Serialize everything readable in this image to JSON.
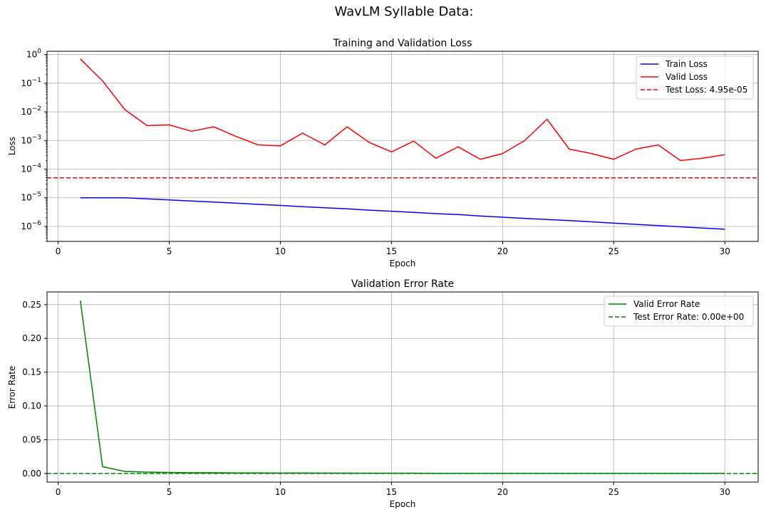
{
  "figure": {
    "suptitle": "WavLM Syllable Data:"
  },
  "chart_data": [
    {
      "type": "line",
      "title": "Training and Validation Loss",
      "xlabel": "Epoch",
      "ylabel": "Loss",
      "yscale": "log",
      "xlim": [
        -0.5,
        31.5
      ],
      "ylim": [
        3e-07,
        1.3
      ],
      "xticks": [
        0,
        5,
        10,
        15,
        20,
        25,
        30
      ],
      "xtick_labels": [
        "0",
        "5",
        "10",
        "15",
        "20",
        "25",
        "30"
      ],
      "yticks": [
        1e-06,
        1e-05,
        0.0001,
        0.001,
        0.01,
        0.1,
        1
      ],
      "ytick_labels": [
        {
          "base": "10",
          "exp": "−6"
        },
        {
          "base": "10",
          "exp": "−5"
        },
        {
          "base": "10",
          "exp": "−4"
        },
        {
          "base": "10",
          "exp": "−3"
        },
        {
          "base": "10",
          "exp": "−2"
        },
        {
          "base": "10",
          "exp": "−1"
        },
        {
          "base": "10",
          "exp": "0"
        }
      ],
      "grid": true,
      "legend_position": "top-right",
      "x": [
        1,
        2,
        3,
        4,
        5,
        6,
        7,
        8,
        9,
        10,
        11,
        12,
        13,
        14,
        15,
        16,
        17,
        18,
        19,
        20,
        21,
        22,
        23,
        24,
        25,
        26,
        27,
        28,
        29,
        30
      ],
      "series": [
        {
          "name": "Train Loss",
          "color": "#0000ff",
          "style": "solid",
          "values": [
            1e-05,
            1e-05,
            1e-05,
            9.2e-06,
            8.4e-06,
            7.7e-06,
            7.1e-06,
            6.5e-06,
            5.9e-06,
            5.4e-06,
            4.9e-06,
            4.5e-06,
            4.1e-06,
            3.7e-06,
            3.4e-06,
            3.1e-06,
            2.8e-06,
            2.6e-06,
            2.3e-06,
            2.1e-06,
            1.9e-06,
            1.75e-06,
            1.6e-06,
            1.45e-06,
            1.3e-06,
            1.18e-06,
            1.07e-06,
            9.7e-07,
            8.8e-07,
            8e-07
          ]
        },
        {
          "name": "Valid Loss",
          "color": "#ff0000",
          "style": "solid",
          "values": [
            0.7,
            0.12,
            0.012,
            0.0033,
            0.0035,
            0.0021,
            0.003,
            0.0014,
            0.0007,
            0.00065,
            0.0018,
            0.0007,
            0.003,
            0.00085,
            0.0004,
            0.00095,
            0.00024,
            0.0006,
            0.00022,
            0.00035,
            0.001,
            0.0055,
            0.0005,
            0.00035,
            0.00022,
            0.0005,
            0.0007,
            0.0002,
            0.00024,
            0.00032
          ]
        }
      ],
      "hlines": [
        {
          "name": "Test Loss: 4.95e-05",
          "value": 4.95e-05,
          "color": "#ff0000",
          "style": "dashed"
        }
      ]
    },
    {
      "type": "line",
      "title": "Validation Error Rate",
      "xlabel": "Epoch",
      "ylabel": "Error Rate",
      "xlim": [
        -0.5,
        31.5
      ],
      "ylim": [
        -0.0128,
        0.2688
      ],
      "xticks": [
        0,
        5,
        10,
        15,
        20,
        25,
        30
      ],
      "xtick_labels": [
        "0",
        "5",
        "10",
        "15",
        "20",
        "25",
        "30"
      ],
      "yticks": [
        0,
        0.05,
        0.1,
        0.15,
        0.2,
        0.25
      ],
      "ytick_labels": [
        "0.00",
        "0.05",
        "0.10",
        "0.15",
        "0.20",
        "0.25"
      ],
      "grid": true,
      "legend_position": "top-right",
      "x": [
        1,
        2,
        3,
        4,
        5,
        6,
        7,
        8,
        9,
        10,
        11,
        12,
        13,
        14,
        15,
        16,
        17,
        18,
        19,
        20,
        21,
        22,
        23,
        24,
        25,
        26,
        27,
        28,
        29,
        30
      ],
      "series": [
        {
          "name": "Valid Error Rate",
          "color": "#008000",
          "style": "solid",
          "values": [
            0.256,
            0.01,
            0.003,
            0.002,
            0.0015,
            0.001,
            0.001,
            0.0008,
            0.0008,
            0.0006,
            0.0006,
            0.0005,
            0.0005,
            0.0004,
            0.0004,
            0.0004,
            0.0003,
            0.0003,
            0.0003,
            0.0003,
            0.0003,
            0.0003,
            0.0003,
            0.0002,
            0.0002,
            0.0002,
            0.0002,
            0.0002,
            0.0002,
            0.0002
          ]
        }
      ],
      "hlines": [
        {
          "name": "Test Error Rate: 0.00e+00",
          "value": 0.0,
          "color": "#008000",
          "style": "dashed"
        }
      ]
    }
  ]
}
